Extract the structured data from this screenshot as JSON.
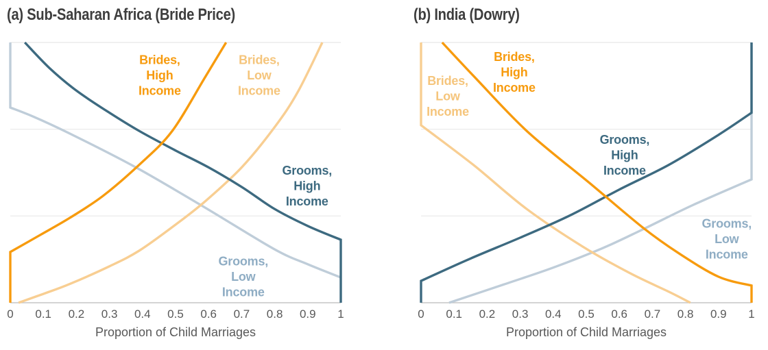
{
  "styles": {
    "background": "#ffffff",
    "grid_color": "#e8e8e8",
    "axis_color": "#c6c6c6",
    "tick_color": "#585858",
    "title_color": "#3e3e3e",
    "orange": "#f79b0e",
    "light_orange": "#f8ce92",
    "teal": "#3d6a80",
    "light_blue": "#bfcdd9"
  },
  "chart_data": [
    {
      "id": "a",
      "type": "line",
      "title": "(a) Sub-Saharan Africa (Bride Price)",
      "xlabel": "Proportion of Child Marriages",
      "x_ticks": [
        "0",
        "0.1",
        "0.2",
        "0.3",
        "0.4",
        "0.5",
        "0.6",
        "0.7",
        "0.8",
        "0.9",
        "1"
      ],
      "xlim": [
        0,
        1
      ],
      "ylim": [
        0,
        1
      ],
      "y_axis_visible": false,
      "grid": "horizontal",
      "legend_position": "inline-labels",
      "series": [
        {
          "key": "grooms_low",
          "name": "Grooms, Low Income",
          "color": "#bfcdd9",
          "label_color": "#8fadc4",
          "label_lines": [
            "Grooms,",
            "Low",
            "Income"
          ],
          "label_x": 0.705,
          "label_y": 0.101,
          "start_vertical": {
            "x": 0,
            "from": 1
          },
          "points": [
            [
              0,
              0.75
            ],
            [
              0.07,
              0.715
            ],
            [
              0.18,
              0.65
            ],
            [
              0.38,
              0.52
            ],
            [
              0.59,
              0.365
            ],
            [
              0.8,
              0.205
            ],
            [
              0.9,
              0.148
            ],
            [
              1,
              0.097
            ]
          ]
        },
        {
          "key": "brides_low",
          "name": "Brides, Low Income",
          "color": "#f8ce92",
          "label_color": "#f5c57c",
          "label_lines": [
            "Brides,",
            "Low",
            "Income"
          ],
          "label_x": 0.753,
          "label_y": 0.875,
          "points": [
            [
              0.025,
              0
            ],
            [
              0.1,
              0.034
            ],
            [
              0.18,
              0.072
            ],
            [
              0.3,
              0.14
            ],
            [
              0.39,
              0.2
            ],
            [
              0.5,
              0.3
            ],
            [
              0.59,
              0.39
            ],
            [
              0.7,
              0.52
            ],
            [
              0.8,
              0.675
            ],
            [
              0.87,
              0.81
            ],
            [
              0.944,
              1
            ]
          ]
        },
        {
          "key": "grooms_high",
          "name": "Grooms, High Income",
          "color": "#3d6a80",
          "label_color": "#3d6a80",
          "label_lines": [
            "Grooms,",
            "High",
            "Income"
          ],
          "label_x": 0.898,
          "label_y": 0.45,
          "points": [
            [
              0.044,
              1
            ],
            [
              0.12,
              0.9
            ],
            [
              0.2,
              0.815
            ],
            [
              0.3,
              0.73
            ],
            [
              0.39,
              0.66
            ],
            [
              0.5,
              0.585
            ],
            [
              0.6,
              0.52
            ],
            [
              0.7,
              0.445
            ],
            [
              0.8,
              0.36
            ],
            [
              0.9,
              0.295
            ],
            [
              1,
              0.242
            ]
          ],
          "end_vertical": {
            "x": 1,
            "to": 0
          }
        },
        {
          "key": "brides_high",
          "name": "Brides, High Income",
          "color": "#f79b0e",
          "label_color": "#f79b0e",
          "label_lines": [
            "Brides,",
            "High",
            "Income"
          ],
          "label_x": 0.452,
          "label_y": 0.875,
          "start_vertical": {
            "x": 0,
            "from": 0
          },
          "points": [
            [
              0,
              0.195
            ],
            [
              0.09,
              0.26
            ],
            [
              0.18,
              0.326
            ],
            [
              0.28,
              0.41
            ],
            [
              0.39,
              0.53
            ],
            [
              0.49,
              0.66
            ],
            [
              0.59,
              0.868
            ],
            [
              0.653,
              1
            ]
          ]
        }
      ]
    },
    {
      "id": "b",
      "type": "line",
      "title": "(b) India (Dowry)",
      "xlabel": "Proportion of Child Marriages",
      "x_ticks": [
        "0",
        "0.1",
        "0.2",
        "0.3",
        "0.4",
        "0.5",
        "0.6",
        "0.7",
        "0.8",
        "0.9",
        "1"
      ],
      "xlim": [
        0,
        1
      ],
      "ylim": [
        0,
        1
      ],
      "y_axis_visible": false,
      "grid": "horizontal",
      "legend_position": "inline-labels",
      "series": [
        {
          "key": "grooms_low",
          "name": "Grooms, Low Income",
          "color": "#bfcdd9",
          "label_color": "#8fadc4",
          "label_lines": [
            "Grooms,",
            "Low",
            "Income"
          ],
          "label_x": 0.925,
          "label_y": 0.246,
          "points": [
            [
              0.085,
              0
            ],
            [
              0.25,
              0.07
            ],
            [
              0.4,
              0.135
            ],
            [
              0.55,
              0.21
            ],
            [
              0.668,
              0.28
            ],
            [
              0.822,
              0.375
            ],
            [
              1,
              0.474
            ]
          ],
          "end_vertical": {
            "x": 1,
            "to": 1
          }
        },
        {
          "key": "brides_low",
          "name": "Brides, Low Income",
          "color": "#f8ce92",
          "label_color": "#f5c57c",
          "label_lines": [
            "Brides,",
            "Low",
            "Income"
          ],
          "label_x": 0.081,
          "label_y": 0.795,
          "start_vertical": {
            "x": 0,
            "from": 1
          },
          "points": [
            [
              0,
              0.682
            ],
            [
              0.158,
              0.53
            ],
            [
              0.32,
              0.36
            ],
            [
              0.49,
              0.215
            ],
            [
              0.63,
              0.115
            ],
            [
              0.75,
              0.042
            ],
            [
              0.815,
              0
            ]
          ]
        },
        {
          "key": "grooms_high",
          "name": "Grooms, High Income",
          "color": "#3d6a80",
          "label_color": "#3d6a80",
          "label_lines": [
            "Grooms,",
            "High",
            "Income"
          ],
          "label_x": 0.616,
          "label_y": 0.568,
          "start_vertical": {
            "x": 0,
            "from": 0
          },
          "points": [
            [
              0,
              0.084
            ],
            [
              0.15,
              0.17
            ],
            [
              0.3,
              0.25
            ],
            [
              0.45,
              0.335
            ],
            [
              0.6,
              0.435
            ],
            [
              0.75,
              0.53
            ],
            [
              0.9,
              0.645
            ],
            [
              1,
              0.73
            ]
          ],
          "end_vertical": {
            "x": 1,
            "to": 1
          }
        },
        {
          "key": "brides_high",
          "name": "Brides, High Income",
          "color": "#f79b0e",
          "label_color": "#f79b0e",
          "label_lines": [
            "Brides,",
            "High",
            "Income"
          ],
          "label_x": 0.282,
          "label_y": 0.887,
          "points": [
            [
              0.064,
              1
            ],
            [
              0.16,
              0.87
            ],
            [
              0.32,
              0.66
            ],
            [
              0.51,
              0.46
            ],
            [
              0.67,
              0.29
            ],
            [
              0.78,
              0.19
            ],
            [
              0.9,
              0.1
            ],
            [
              1,
              0.066
            ]
          ],
          "end_vertical": {
            "x": 1,
            "to": 0
          }
        }
      ]
    }
  ]
}
